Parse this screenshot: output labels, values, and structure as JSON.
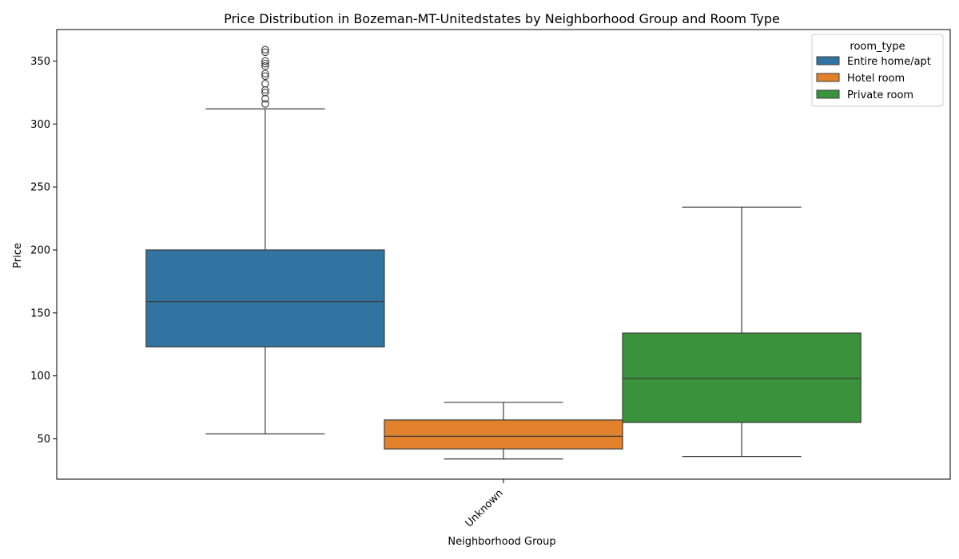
{
  "chart_data": {
    "type": "boxplot",
    "title": "Price Distribution in Bozeman-MT-Unitedstates by Neighborhood Group and Room Type",
    "xlabel": "Neighborhood Group",
    "ylabel": "Price",
    "categories": [
      "Unknown"
    ],
    "ylim": [
      18,
      375
    ],
    "yticks": [
      50,
      100,
      150,
      200,
      250,
      300,
      350
    ],
    "legend": {
      "title": "room_type",
      "placement": "top-right"
    },
    "series": [
      {
        "name": "Entire home/apt",
        "color": "#3274a1",
        "whisker_low": 54,
        "q1": 123,
        "median": 159,
        "q3": 200,
        "whisker_high": 312,
        "outliers": [
          316,
          320,
          325,
          327,
          332,
          338,
          340,
          346,
          348,
          350,
          357,
          359
        ]
      },
      {
        "name": "Hotel room",
        "color": "#e1812c",
        "whisker_low": 34,
        "q1": 42,
        "median": 52,
        "q3": 65,
        "whisker_high": 79,
        "outliers": []
      },
      {
        "name": "Private room",
        "color": "#3a923a",
        "whisker_low": 36,
        "q1": 63,
        "median": 98,
        "q3": 134,
        "whisker_high": 234,
        "outliers": []
      }
    ]
  }
}
